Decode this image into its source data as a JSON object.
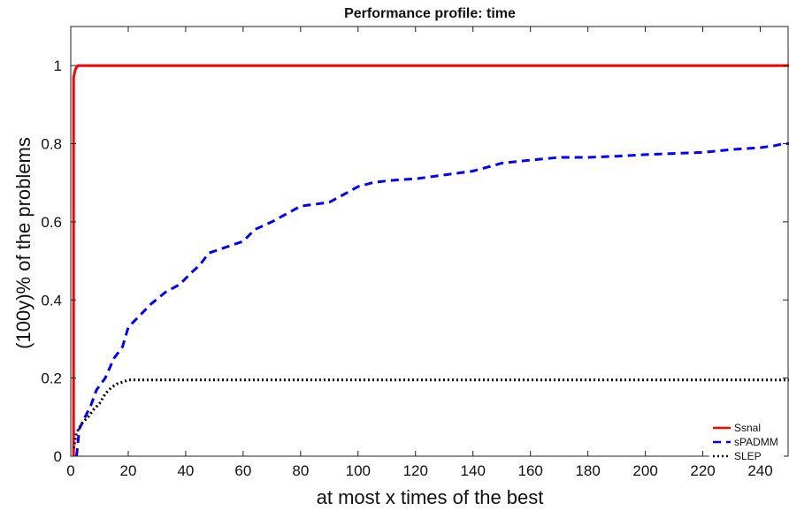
{
  "chart_data": {
    "type": "line",
    "title": "Performance profile: time",
    "xlabel": "at most x times of the best",
    "ylabel": "(100y)% of the problems",
    "xlim": [
      0,
      250
    ],
    "ylim": [
      0,
      1.1
    ],
    "xticks": [
      0,
      20,
      40,
      60,
      80,
      100,
      120,
      140,
      160,
      180,
      200,
      220,
      240
    ],
    "yticks": [
      0,
      0.2,
      0.4,
      0.6,
      0.8,
      1
    ],
    "ytick_labels": [
      "0",
      "0.2",
      "0.4",
      "0.6",
      "0.8",
      "1"
    ],
    "grid": false,
    "legend_position": "bottom-right",
    "series": [
      {
        "name": "Ssnal",
        "color": "#ff0000",
        "style": "solid",
        "x": [
          1,
          1,
          1.6,
          2.4,
          250
        ],
        "y": [
          0,
          0.97,
          0.99,
          1.0,
          1.0
        ]
      },
      {
        "name": "sPADMM",
        "color": "#0000ff",
        "style": "dashed",
        "x": [
          2,
          3,
          5,
          7,
          9,
          12,
          15,
          18,
          20,
          24,
          28,
          33,
          38,
          42,
          45,
          48,
          52,
          56,
          60,
          64,
          70,
          75,
          80,
          85,
          90,
          95,
          100,
          105,
          110,
          115,
          120,
          130,
          140,
          145,
          150,
          160,
          170,
          180,
          190,
          200,
          210,
          220,
          230,
          240,
          245,
          248,
          250
        ],
        "y": [
          0.0,
          0.07,
          0.1,
          0.13,
          0.17,
          0.2,
          0.25,
          0.28,
          0.33,
          0.36,
          0.39,
          0.42,
          0.44,
          0.47,
          0.49,
          0.52,
          0.53,
          0.54,
          0.55,
          0.58,
          0.6,
          0.62,
          0.64,
          0.645,
          0.65,
          0.67,
          0.69,
          0.7,
          0.705,
          0.708,
          0.71,
          0.72,
          0.73,
          0.74,
          0.75,
          0.758,
          0.765,
          0.765,
          0.768,
          0.772,
          0.775,
          0.778,
          0.785,
          0.79,
          0.795,
          0.8,
          0.8
        ]
      },
      {
        "name": "SLEP",
        "color": "#000000",
        "style": "dotted",
        "x": [
          1,
          2,
          4,
          6,
          8,
          10,
          12,
          14,
          16,
          18,
          20,
          25,
          30,
          250
        ],
        "y": [
          0.02,
          0.06,
          0.085,
          0.1,
          0.12,
          0.135,
          0.16,
          0.175,
          0.185,
          0.19,
          0.195,
          0.195,
          0.195,
          0.195
        ]
      }
    ]
  }
}
